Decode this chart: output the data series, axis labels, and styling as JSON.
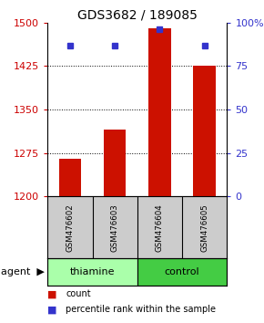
{
  "title": "GDS3682 / 189085",
  "samples": [
    "GSM476602",
    "GSM476603",
    "GSM476604",
    "GSM476605"
  ],
  "bar_values": [
    1265,
    1315,
    1490,
    1425
  ],
  "bar_baseline": 1200,
  "percentile_values": [
    87,
    87,
    96,
    87
  ],
  "left_ylim": [
    1200,
    1500
  ],
  "right_ylim": [
    0,
    100
  ],
  "left_yticks": [
    1200,
    1275,
    1350,
    1425,
    1500
  ],
  "right_yticks": [
    0,
    25,
    50,
    75,
    100
  ],
  "right_yticklabels": [
    "0",
    "25",
    "50",
    "75",
    "100%"
  ],
  "left_tick_color": "#cc0000",
  "right_tick_color": "#3333cc",
  "bar_color": "#cc1100",
  "dot_color": "#3333cc",
  "groups": [
    {
      "label": "thiamine",
      "samples": [
        0,
        1
      ],
      "color": "#aaffaa"
    },
    {
      "label": "control",
      "samples": [
        2,
        3
      ],
      "color": "#44cc44"
    }
  ],
  "group_row_bg": "#cccccc",
  "legend_count_color": "#cc1100",
  "legend_pct_color": "#3333cc",
  "figsize": [
    2.9,
    3.54
  ],
  "dpi": 100
}
